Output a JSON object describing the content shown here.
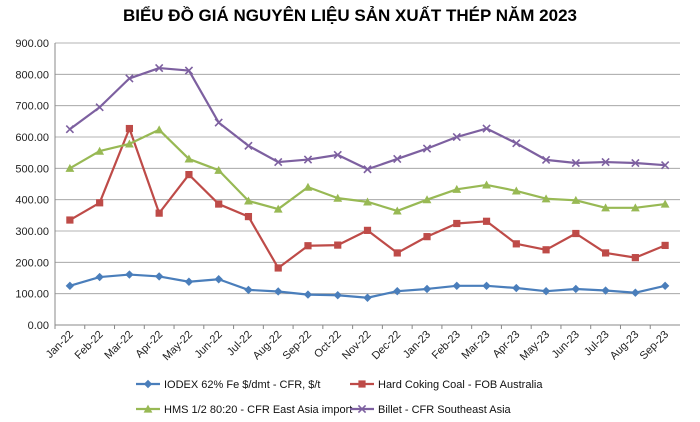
{
  "chart_data": {
    "type": "line",
    "title": "BIỂU ĐỒ GIÁ NGUYÊN LIỆU SẢN XUẤT THÉP NĂM 2023",
    "xlabel": "",
    "ylabel": "",
    "ylim": [
      0,
      900
    ],
    "yticks": [
      "0.00",
      "100.00",
      "200.00",
      "300.00",
      "400.00",
      "500.00",
      "600.00",
      "700.00",
      "800.00",
      "900.00"
    ],
    "grid": true,
    "legend_position": "bottom",
    "categories": [
      "Jan-22",
      "Feb-22",
      "Mar-22",
      "Apr-22",
      "May-22",
      "Jun-22",
      "Jul-22",
      "Aug-22",
      "Sep-22",
      "Oct-22",
      "Nov-22",
      "Dec-22",
      "Jan-23",
      "Feb-23",
      "Mar-23",
      "Apr-23",
      "May-23",
      "Jun-23",
      "Jul-23",
      "Aug-23",
      "Sep-23"
    ],
    "series": [
      {
        "name": "IODEX 62% Fe $/dmt - CFR, $/t",
        "color": "#4a7ebb",
        "marker": "diamond",
        "values": [
          125,
          153,
          161,
          155,
          138,
          146,
          112,
          107,
          97,
          95,
          87,
          108,
          115,
          125,
          125,
          118,
          108,
          115,
          110,
          103,
          125
        ]
      },
      {
        "name": "Hard Coking Coal - FOB Australia",
        "color": "#be4b48",
        "marker": "square",
        "values": [
          335,
          390,
          627,
          357,
          480,
          386,
          346,
          182,
          253,
          255,
          302,
          230,
          282,
          324,
          331,
          259,
          240,
          292,
          230,
          215,
          254
        ]
      },
      {
        "name": "HMS 1/2 80:20 - CFR East Asia import",
        "color": "#98b954",
        "marker": "triangle",
        "values": [
          500,
          555,
          578,
          623,
          530,
          494,
          396,
          370,
          440,
          405,
          393,
          364,
          400,
          433,
          447,
          428,
          403,
          398,
          374,
          374,
          386
        ]
      },
      {
        "name": "Billet - CFR Southeast Asia",
        "color": "#7d60a0",
        "marker": "x",
        "values": [
          625,
          695,
          787,
          820,
          812,
          646,
          572,
          520,
          528,
          543,
          497,
          530,
          563,
          600,
          627,
          580,
          527,
          517,
          520,
          517,
          510
        ]
      }
    ]
  }
}
